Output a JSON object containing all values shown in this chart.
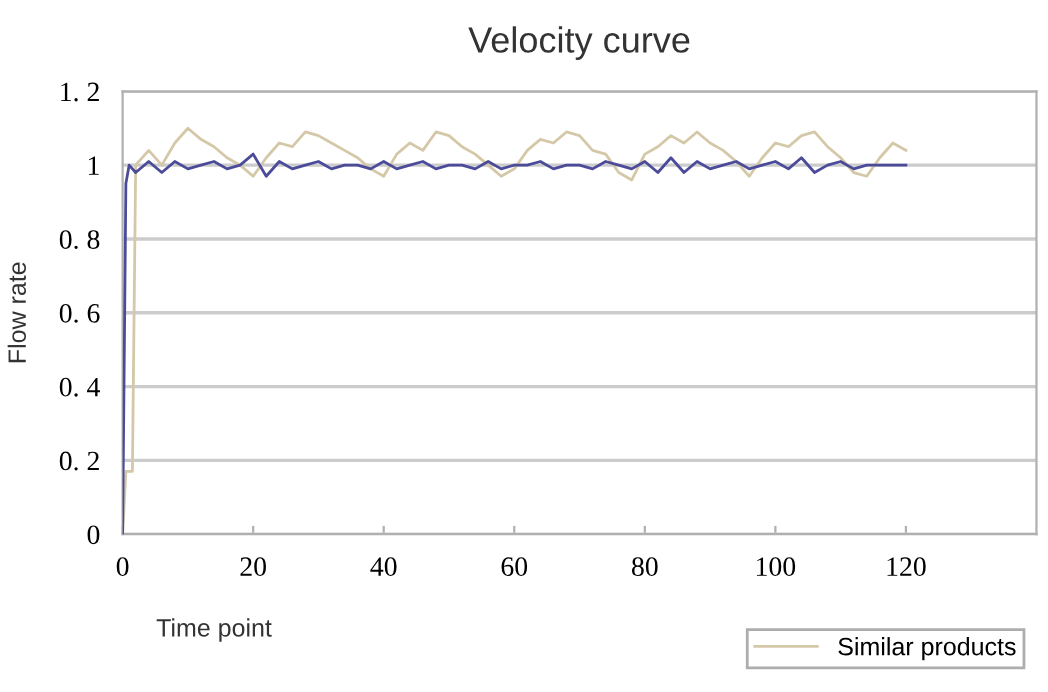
{
  "chart_data": {
    "type": "line",
    "title": "Velocity curve",
    "xlabel": "Time point",
    "ylabel": "Flow rate",
    "xlim": [
      0,
      140
    ],
    "xticks": [
      0,
      20,
      40,
      60,
      80,
      100,
      120
    ],
    "ylim": [
      0,
      1.2
    ],
    "yticks": [
      {
        "value": 0,
        "label": "0"
      },
      {
        "value": 0.2,
        "label": "0. 2"
      },
      {
        "value": 0.4,
        "label": "0. 4"
      },
      {
        "value": 0.6,
        "label": "0. 6"
      },
      {
        "value": 0.8,
        "label": "0. 8"
      },
      {
        "value": 1,
        "label": "1"
      },
      {
        "value": 1.2,
        "label": "1. 2"
      }
    ],
    "grid": "y",
    "legend": "bottom right",
    "marker": "none",
    "line_style": "solid",
    "series": [
      {
        "color": "#4b4b9a",
        "x": [
          0,
          0.5,
          1,
          2,
          4,
          6,
          8,
          10,
          12,
          14,
          16,
          18,
          20,
          22,
          24,
          26,
          28,
          30,
          32,
          34,
          36,
          38,
          40,
          42,
          44,
          46,
          48,
          50,
          52,
          54,
          56,
          58,
          60,
          62,
          64,
          66,
          68,
          70,
          72,
          74,
          76,
          78,
          80,
          82,
          84,
          86,
          88,
          90,
          92,
          94,
          96,
          98,
          100,
          102,
          104,
          106,
          108,
          110,
          112,
          114,
          116,
          118,
          120
        ],
        "values": [
          0,
          0.95,
          1.0,
          0.98,
          1.01,
          0.98,
          1.01,
          0.99,
          1.0,
          1.01,
          0.99,
          1.0,
          1.03,
          0.97,
          1.01,
          0.99,
          1.0,
          1.01,
          0.99,
          1.0,
          1.0,
          0.99,
          1.01,
          0.99,
          1.0,
          1.01,
          0.99,
          1.0,
          1.0,
          0.99,
          1.01,
          0.99,
          1.0,
          1.0,
          1.01,
          0.99,
          1.0,
          1.0,
          0.99,
          1.01,
          1.0,
          0.99,
          1.01,
          0.98,
          1.02,
          0.98,
          1.01,
          0.99,
          1.0,
          1.01,
          0.99,
          1.0,
          1.01,
          0.99,
          1.02,
          0.98,
          1.0,
          1.01,
          0.99,
          1.0,
          1.0,
          1.0,
          1.0
        ]
      },
      {
        "name": "Similar products",
        "color": "#d4c8a8",
        "x": [
          0,
          0.5,
          1.5,
          2,
          4,
          6,
          8,
          10,
          12,
          14,
          16,
          18,
          20,
          22,
          24,
          26,
          28,
          30,
          32,
          34,
          36,
          38,
          40,
          42,
          44,
          46,
          48,
          50,
          52,
          54,
          56,
          58,
          60,
          62,
          64,
          66,
          68,
          70,
          72,
          74,
          76,
          78,
          80,
          82,
          84,
          86,
          88,
          90,
          92,
          94,
          96,
          98,
          100,
          102,
          104,
          106,
          108,
          110,
          112,
          114,
          116,
          118,
          120
        ],
        "values": [
          0,
          0.17,
          0.17,
          1.0,
          1.04,
          1.0,
          1.06,
          1.1,
          1.07,
          1.05,
          1.02,
          1.0,
          0.97,
          1.02,
          1.06,
          1.05,
          1.09,
          1.08,
          1.06,
          1.04,
          1.02,
          0.99,
          0.97,
          1.03,
          1.06,
          1.04,
          1.09,
          1.08,
          1.05,
          1.03,
          1.0,
          0.97,
          0.99,
          1.04,
          1.07,
          1.06,
          1.09,
          1.08,
          1.04,
          1.03,
          0.98,
          0.96,
          1.03,
          1.05,
          1.08,
          1.06,
          1.09,
          1.06,
          1.04,
          1.01,
          0.97,
          1.02,
          1.06,
          1.05,
          1.08,
          1.09,
          1.05,
          1.02,
          0.98,
          0.97,
          1.02,
          1.06,
          1.04
        ]
      }
    ]
  }
}
